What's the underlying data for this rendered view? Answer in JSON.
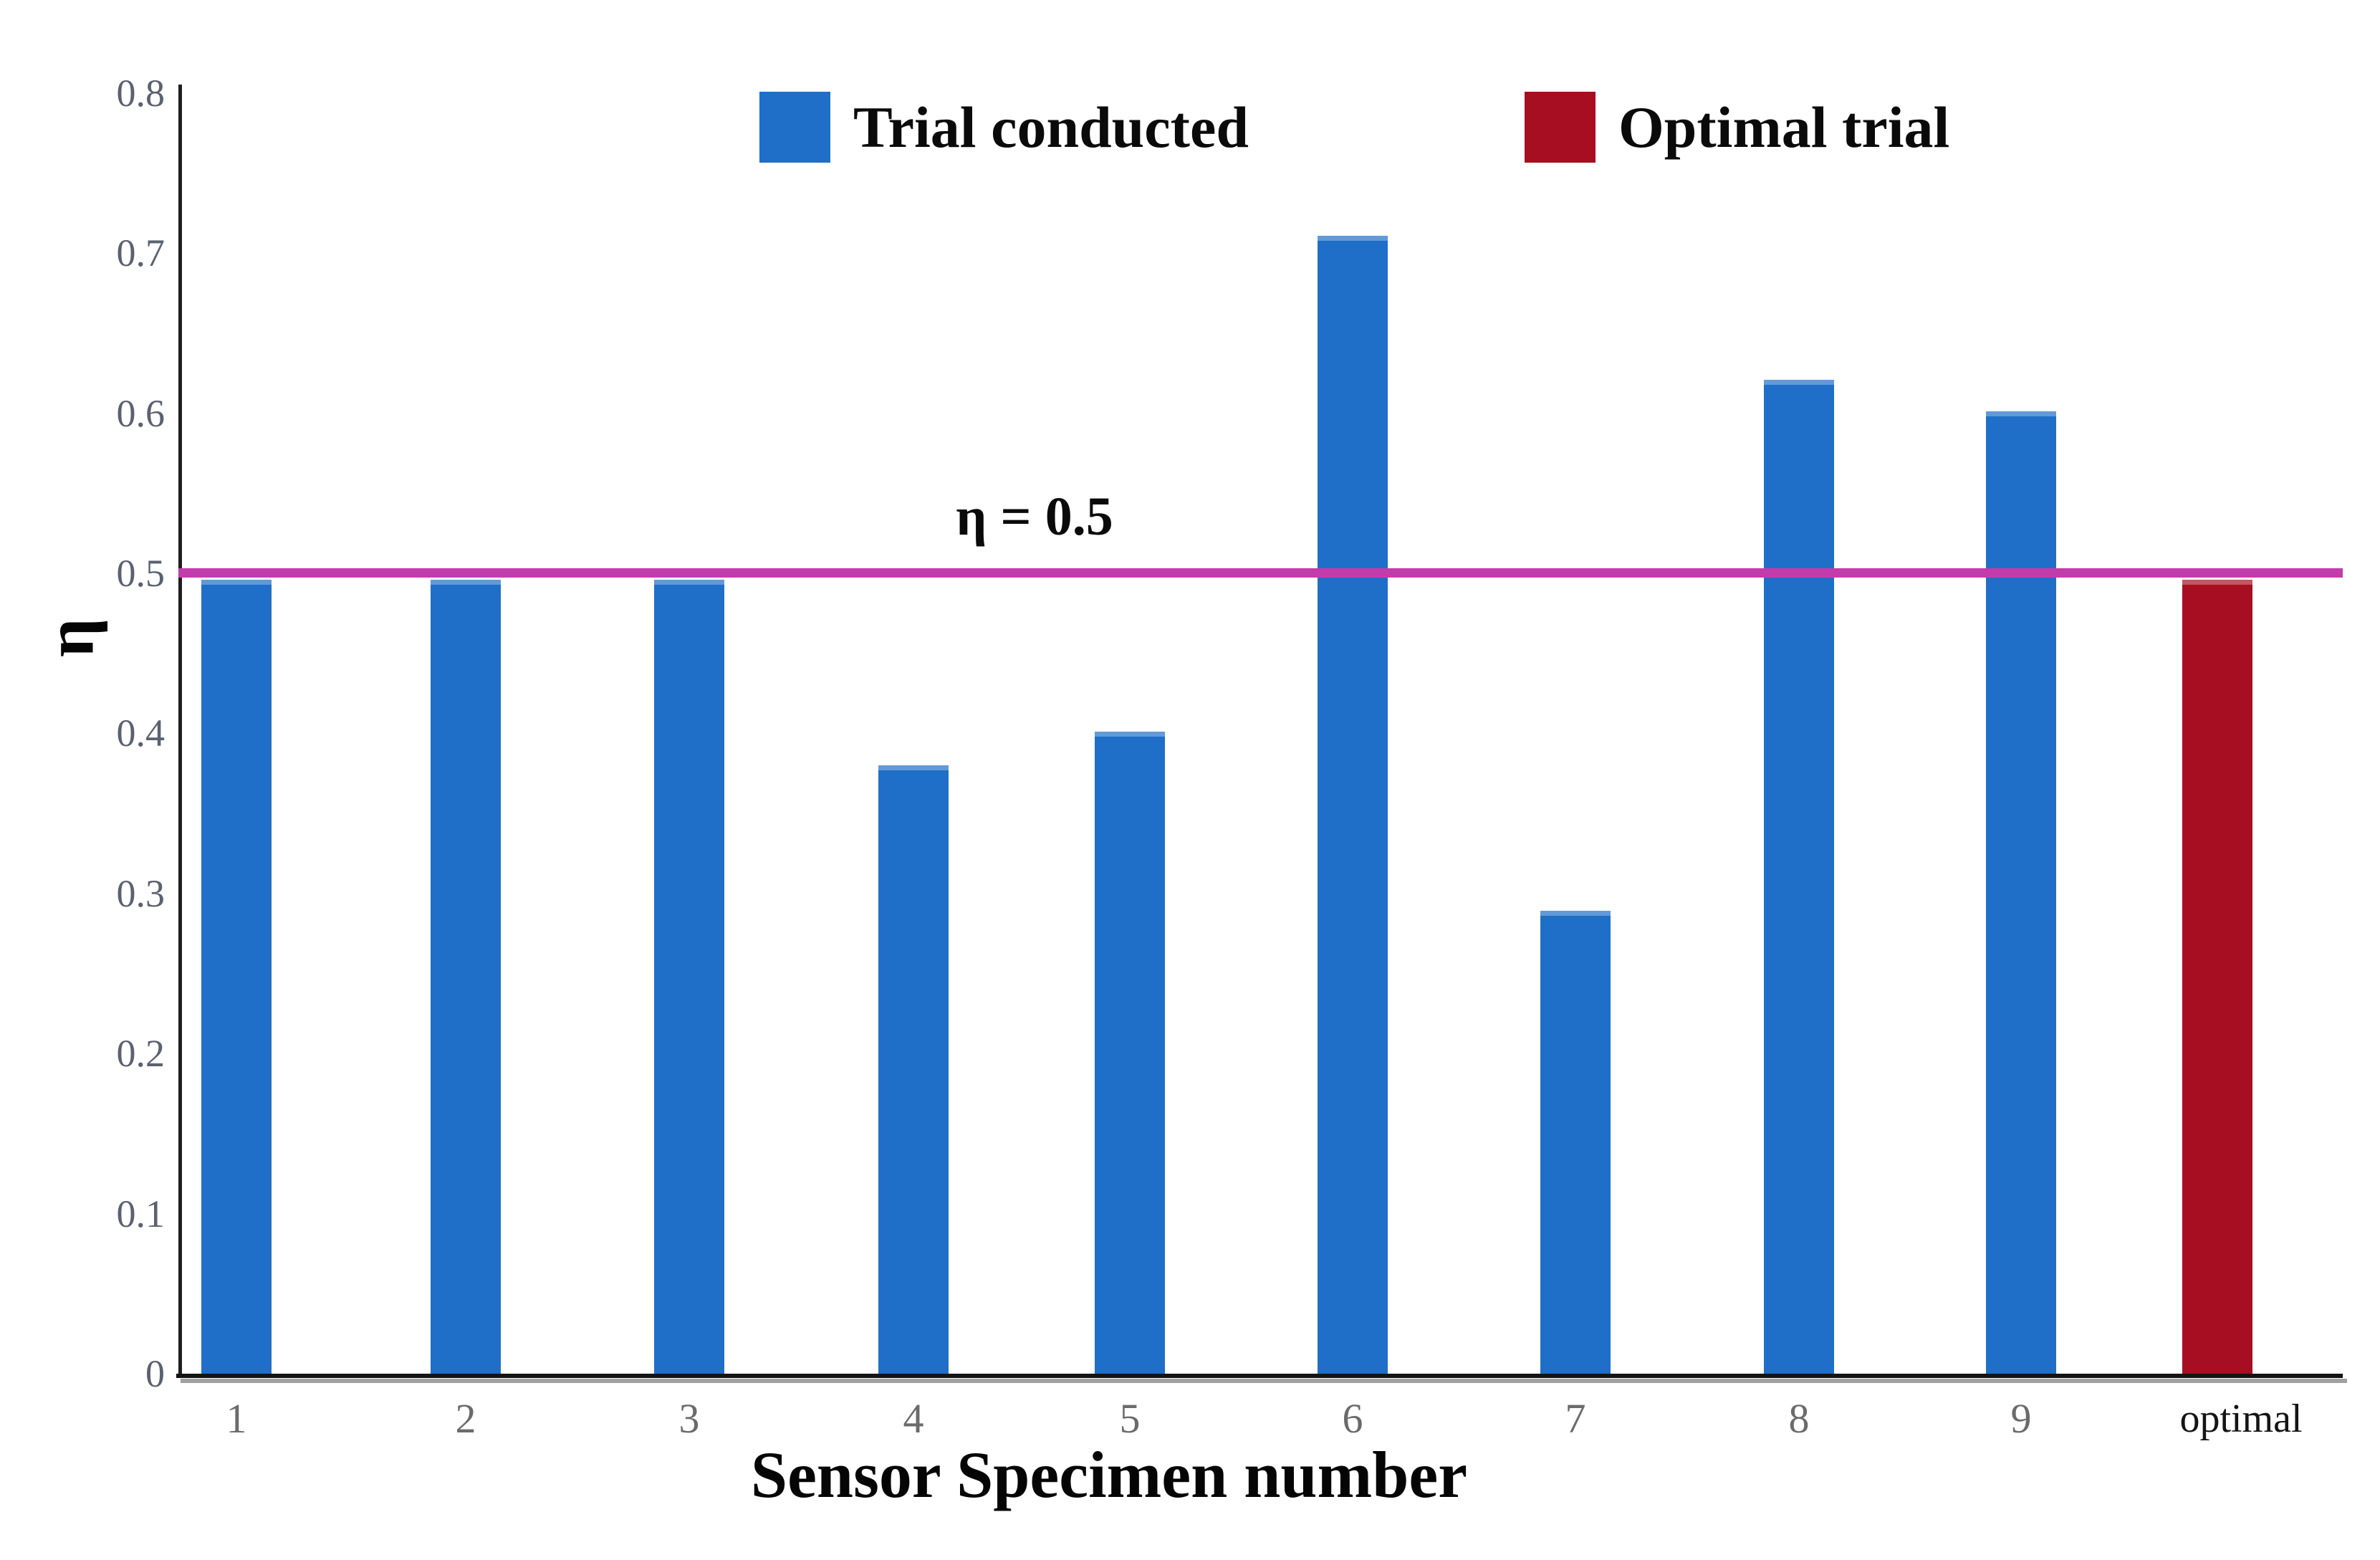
{
  "chart_data": {
    "type": "bar",
    "title": "",
    "xlabel": "Sensor Specimen number",
    "ylabel": "η",
    "ylim": [
      0,
      0.8
    ],
    "ytick_labels": [
      "0",
      "0.1",
      "0.2",
      "0.3",
      "0.4",
      "0.5",
      "0.6",
      "0.7",
      "0.8"
    ],
    "categories": [
      "1",
      "2",
      "3",
      "4",
      "5",
      "6",
      "7",
      "8",
      "9",
      "optimal"
    ],
    "series": [
      {
        "name": "Trial conducted",
        "color": "#1f6fc8",
        "values": [
          0.496,
          0.496,
          0.496,
          0.38,
          0.401,
          0.711,
          0.289,
          0.621,
          0.601,
          null
        ]
      },
      {
        "name": "Optimal trial",
        "color": "#a80e21",
        "values": [
          null,
          null,
          null,
          null,
          null,
          null,
          null,
          null,
          null,
          0.496
        ]
      }
    ],
    "reference_line": {
      "value": 0.5,
      "label": "η = 0.5",
      "color": "#c33cab"
    },
    "legend_position": "top",
    "grid": false
  }
}
